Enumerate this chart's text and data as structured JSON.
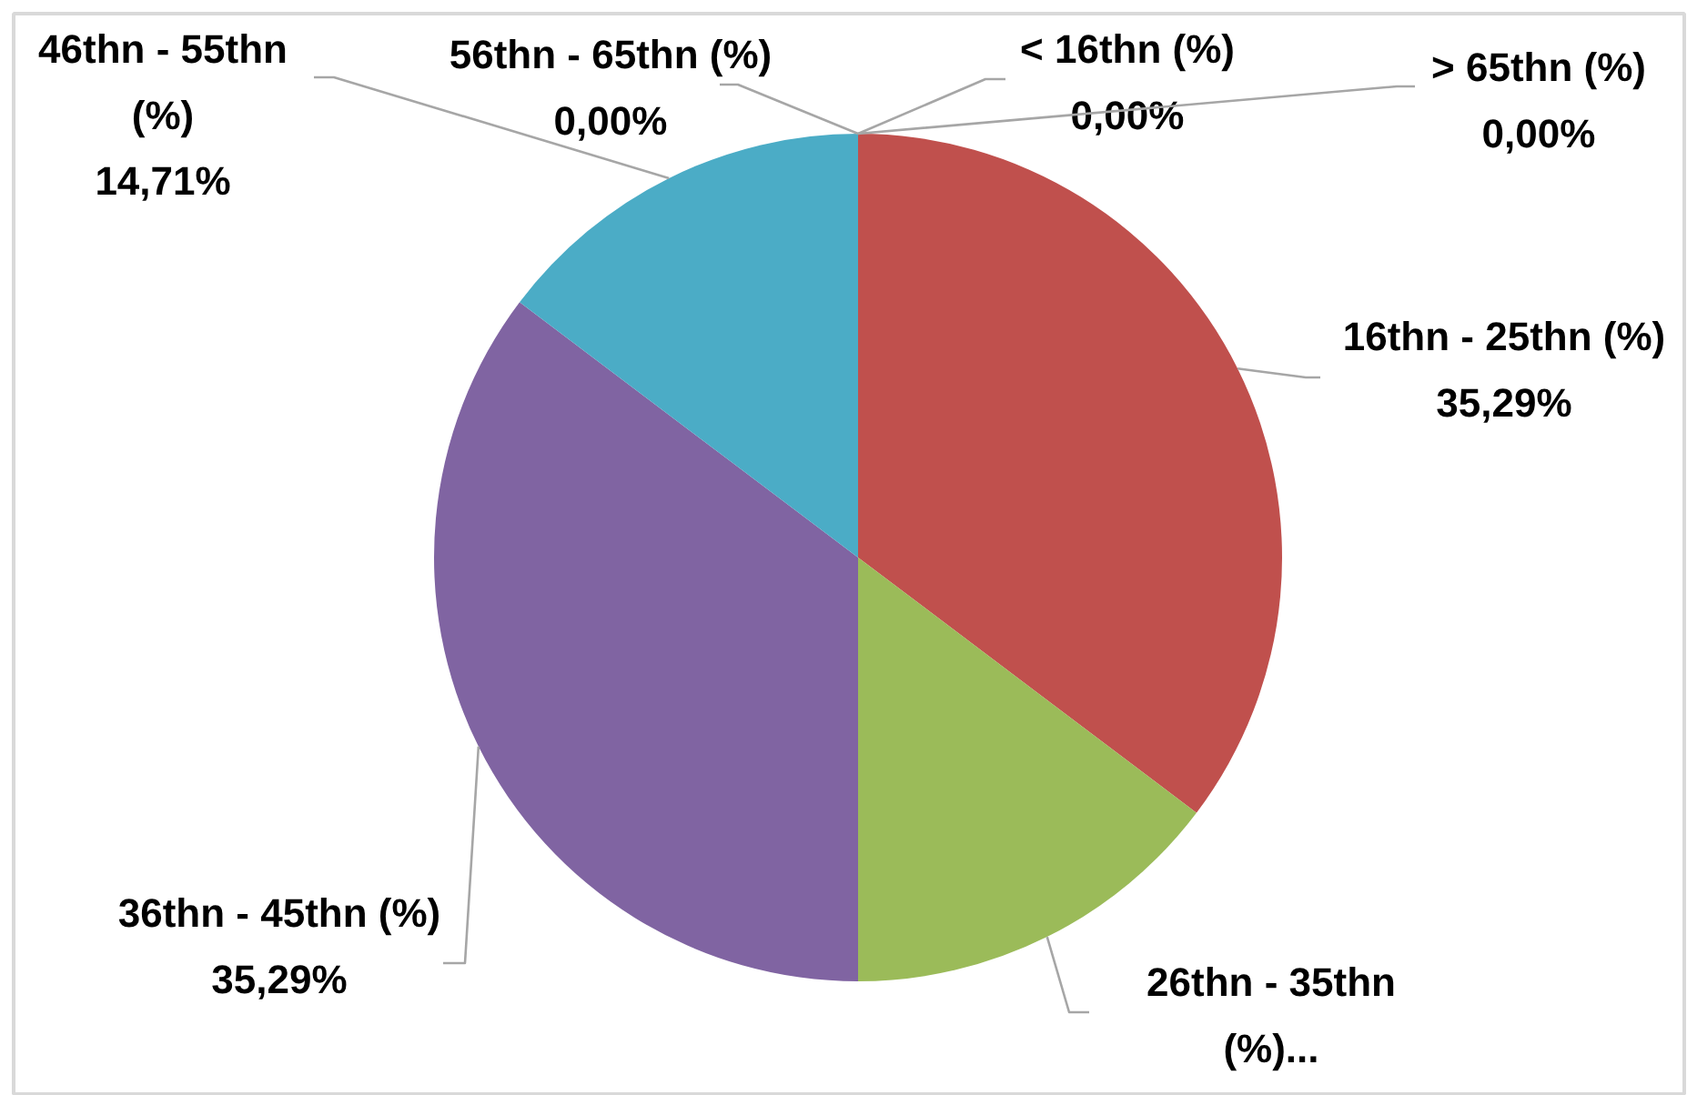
{
  "chart_data": {
    "type": "pie",
    "categories": [
      "< 16thn (%)",
      "16thn - 25thn (%)",
      "26thn - 35thn (%)...",
      "36thn - 45thn (%)",
      "46thn - 55thn (%)",
      "56thn - 65thn (%)",
      "> 65thn (%)"
    ],
    "values": [
      0,
      35.29,
      14.71,
      35.29,
      14.71,
      0,
      0
    ],
    "colors": [
      "#4f81bd",
      "#c0504d",
      "#9bbb59",
      "#8064a2",
      "#4bacc6",
      "#f79646",
      "#2c4d75"
    ],
    "value_labels": [
      "0,00%",
      "35,29%",
      null,
      "35,29%",
      "14,71%",
      "0,00%",
      "0,00%"
    ]
  }
}
